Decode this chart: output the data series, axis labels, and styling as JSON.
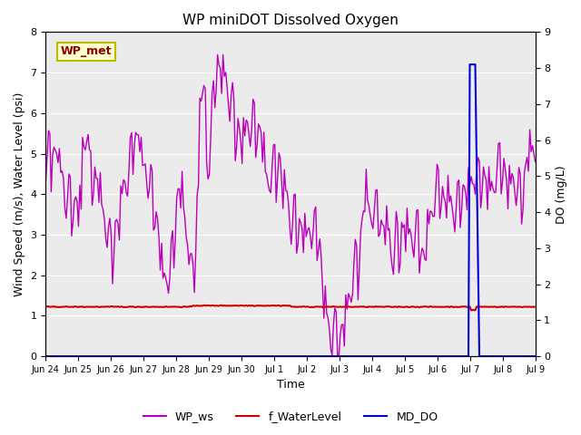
{
  "title": "WP miniDOT Dissolved Oxygen",
  "ylabel_left": "Wind Speed (m/s), Water Level (psi)",
  "ylabel_right": "DO (mg/L)",
  "xlabel": "Time",
  "ylim_left": [
    0,
    8.0
  ],
  "ylim_right": [
    0.0,
    9.0
  ],
  "yticks_left": [
    0.0,
    1.0,
    2.0,
    3.0,
    4.0,
    5.0,
    6.0,
    7.0,
    8.0
  ],
  "yticks_right": [
    0.0,
    1.0,
    2.0,
    3.0,
    4.0,
    5.0,
    6.0,
    7.0,
    8.0,
    9.0
  ],
  "background_color": "#ebebeb",
  "annotation_text": "WP_met",
  "annotation_color": "#8b0000",
  "annotation_bg": "#ffffcc",
  "annotation_border": "#bbbb00",
  "legend_entries": [
    "WP_ws",
    "f_WaterLevel",
    "MD_DO"
  ],
  "legend_colors": [
    "#bb00bb",
    "#cc0000",
    "#0000dd"
  ],
  "wp_ws_color": "#bb00bb",
  "f_water_color": "#cc0000",
  "md_do_color": "#0000dd",
  "wp_ws_linewidth": 1.0,
  "f_water_linewidth": 1.5,
  "md_do_linewidth": 1.5,
  "x_tick_labels": [
    "Jun 24",
    "Jun 25",
    "Jun 26",
    "Jun 27",
    "Jun 28",
    "Jun 29",
    "Jun 30",
    "Jul 1",
    "Jul 2",
    "Jul 3",
    "Jul 4",
    "Jul 5",
    "Jul 6",
    "Jul 7",
    "Jul 8",
    "Jul 9"
  ],
  "n_days": 15,
  "points_per_day": 24,
  "seed": 42,
  "f_water_base": 1.22,
  "md_do_spike_day": 13.0,
  "md_do_spike_val": 8.1,
  "md_do_zero_day": 14.2
}
